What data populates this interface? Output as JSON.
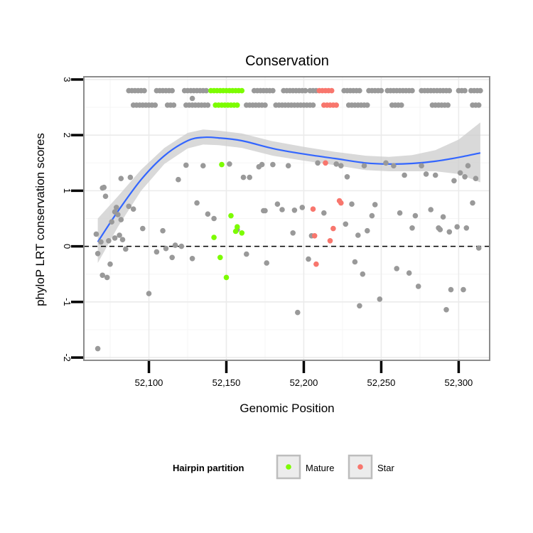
{
  "chart_data": {
    "type": "scatter",
    "title": "Conservation",
    "xlabel": "Genomic Position",
    "ylabel": "phyloP LRT conservation scores",
    "xlim": [
      52058,
      52320
    ],
    "ylim": [
      -2.05,
      3.05
    ],
    "x_ticks": [
      52100,
      52150,
      52200,
      52250,
      52300
    ],
    "x_tick_labels": [
      "52,100",
      "52,150",
      "52,200",
      "52,250",
      "52,300"
    ],
    "y_ticks": [
      -2,
      -1,
      0,
      1,
      2,
      3
    ],
    "y_tick_labels": [
      "-2",
      "-1",
      "0",
      "1",
      "2",
      "3"
    ],
    "grid": true,
    "reference_line": {
      "y": 0,
      "style": "dashed"
    },
    "legend": {
      "title": "Hairpin partition",
      "placement": "bottom",
      "entries": [
        {
          "label": "Mature",
          "color": "#7CFC00"
        },
        {
          "label": "Star",
          "color": "#F8766D"
        }
      ]
    },
    "colors": {
      "other": "#999999",
      "mature": "#7CFC00",
      "star": "#F8766D",
      "smooth": "#3366FF",
      "band": "#cccccc"
    },
    "smooth": {
      "x": [
        52067,
        52080,
        52095,
        52110,
        52125,
        52135,
        52145,
        52160,
        52180,
        52200,
        52220,
        52240,
        52255,
        52270,
        52285,
        52300,
        52314
      ],
      "y": [
        0.08,
        0.63,
        1.2,
        1.63,
        1.9,
        1.96,
        1.95,
        1.9,
        1.76,
        1.66,
        1.58,
        1.5,
        1.48,
        1.49,
        1.53,
        1.6,
        1.68
      ],
      "lower": [
        -0.3,
        0.35,
        1.0,
        1.48,
        1.76,
        1.83,
        1.82,
        1.77,
        1.63,
        1.54,
        1.46,
        1.37,
        1.35,
        1.35,
        1.35,
        1.3,
        1.15
      ],
      "upper": [
        0.5,
        0.9,
        1.38,
        1.77,
        2.04,
        2.1,
        2.08,
        2.03,
        1.89,
        1.79,
        1.7,
        1.63,
        1.61,
        1.64,
        1.73,
        1.92,
        2.23
      ]
    },
    "series": [
      {
        "key": "other",
        "points": [
          [
            52067,
            -1.84
          ],
          [
            52066,
            0.22
          ],
          [
            52067,
            -0.13
          ],
          [
            52069,
            0.08
          ],
          [
            52070,
            1.05
          ],
          [
            52071,
            1.06
          ],
          [
            52072,
            0.9
          ],
          [
            52070,
            -0.52
          ],
          [
            52073,
            -0.56
          ],
          [
            52074,
            0.1
          ],
          [
            52075,
            -0.32
          ],
          [
            52076,
            0.44
          ],
          [
            52078,
            0.15
          ],
          [
            52078,
            0.62
          ],
          [
            52079,
            0.7
          ],
          [
            52080,
            0.57
          ],
          [
            52081,
            0.2
          ],
          [
            52082,
            1.22
          ],
          [
            52082,
            0.48
          ],
          [
            52083,
            0.12
          ],
          [
            52085,
            -0.05
          ],
          [
            52087,
            0.72
          ],
          [
            52088,
            1.24
          ],
          [
            52090,
            0.67
          ],
          [
            52096,
            0.32
          ],
          [
            52100,
            -0.85
          ],
          [
            52105,
            -0.1
          ],
          [
            52109,
            0.28
          ],
          [
            52111,
            -0.04
          ],
          [
            52115,
            -0.2
          ],
          [
            52117,
            0.02
          ],
          [
            52119,
            1.2
          ],
          [
            52121,
            0.0
          ],
          [
            52124,
            1.46
          ],
          [
            52128,
            -0.22
          ],
          [
            52131,
            0.78
          ],
          [
            52135,
            1.45
          ],
          [
            52138,
            0.58
          ],
          [
            52142,
            0.5
          ],
          [
            52152,
            1.48
          ],
          [
            52157,
            0.3
          ],
          [
            52161,
            1.24
          ],
          [
            52163,
            -0.14
          ],
          [
            52165,
            1.24
          ],
          [
            52171,
            1.43
          ],
          [
            52173,
            1.47
          ],
          [
            52174,
            0.64
          ],
          [
            52175,
            0.64
          ],
          [
            52176,
            -0.3
          ],
          [
            52180,
            1.47
          ],
          [
            52183,
            0.76
          ],
          [
            52186,
            0.66
          ],
          [
            52190,
            1.45
          ],
          [
            52193,
            0.24
          ],
          [
            52194,
            0.65
          ],
          [
            52196,
            -1.19
          ],
          [
            52199,
            0.7
          ],
          [
            52203,
            -0.23
          ],
          [
            52205,
            0.19
          ],
          [
            52209,
            1.5
          ],
          [
            52213,
            0.6
          ],
          [
            52221,
            1.48
          ],
          [
            52224,
            1.45
          ],
          [
            52227,
            0.4
          ],
          [
            52228,
            1.25
          ],
          [
            52231,
            0.76
          ],
          [
            52233,
            -0.28
          ],
          [
            52235,
            0.2
          ],
          [
            52236,
            -1.07
          ],
          [
            52238,
            -0.5
          ],
          [
            52239,
            1.45
          ],
          [
            52241,
            0.28
          ],
          [
            52244,
            0.55
          ],
          [
            52246,
            0.75
          ],
          [
            52249,
            -0.95
          ],
          [
            52253,
            1.5
          ],
          [
            52258,
            1.45
          ],
          [
            52260,
            -0.4
          ],
          [
            52262,
            0.6
          ],
          [
            52265,
            1.28
          ],
          [
            52268,
            -0.48
          ],
          [
            52270,
            0.33
          ],
          [
            52272,
            0.55
          ],
          [
            52274,
            -0.72
          ],
          [
            52276,
            1.45
          ],
          [
            52279,
            1.3
          ],
          [
            52282,
            0.66
          ],
          [
            52285,
            1.28
          ],
          [
            52287,
            0.33
          ],
          [
            52288,
            0.3
          ],
          [
            52290,
            0.53
          ],
          [
            52292,
            -1.14
          ],
          [
            52294,
            0.26
          ],
          [
            52295,
            -0.78
          ],
          [
            52297,
            1.18
          ],
          [
            52299,
            0.35
          ],
          [
            52301,
            1.32
          ],
          [
            52303,
            -0.78
          ],
          [
            52304,
            1.25
          ],
          [
            52305,
            0.33
          ],
          [
            52306,
            1.45
          ],
          [
            52309,
            0.78
          ],
          [
            52311,
            1.22
          ],
          [
            52313,
            -0.03
          ]
        ]
      },
      {
        "key": "mature",
        "points": [
          [
            52142,
            0.16
          ],
          [
            52147,
            1.47
          ],
          [
            52150,
            -0.56
          ],
          [
            52153,
            0.55
          ],
          [
            52156,
            0.27
          ],
          [
            52157,
            0.35
          ],
          [
            52160,
            0.24
          ],
          [
            52146,
            -0.2
          ]
        ]
      },
      {
        "key": "star",
        "points": [
          [
            52206,
            0.67
          ],
          [
            52207,
            0.19
          ],
          [
            52208,
            -0.32
          ],
          [
            52214,
            1.5
          ],
          [
            52217,
            0.1
          ],
          [
            52219,
            0.32
          ],
          [
            52223,
            0.82
          ],
          [
            52224,
            0.78
          ]
        ]
      }
    ],
    "top_rows": [
      {
        "y": 2.8,
        "spans": [
          {
            "key": "other",
            "from": 52087,
            "to": 52098,
            "step": 2
          },
          {
            "key": "other",
            "from": 52105,
            "to": 52116,
            "step": 2
          },
          {
            "key": "other",
            "from": 52123,
            "to": 52138,
            "step": 2
          },
          {
            "key": "mature",
            "from": 52140,
            "to": 52160,
            "step": 2
          },
          {
            "key": "other",
            "from": 52168,
            "to": 52180,
            "step": 2
          },
          {
            "key": "other",
            "from": 52187,
            "to": 52202,
            "step": 2
          },
          {
            "key": "other",
            "from": 52204,
            "to": 52208,
            "step": 2
          },
          {
            "key": "star",
            "from": 52210,
            "to": 52218,
            "step": 2
          },
          {
            "key": "other",
            "from": 52226,
            "to": 52236,
            "step": 2
          },
          {
            "key": "other",
            "from": 52242,
            "to": 52250,
            "step": 2
          },
          {
            "key": "other",
            "from": 52254,
            "to": 52270,
            "step": 2
          },
          {
            "key": "other",
            "from": 52276,
            "to": 52294,
            "step": 2
          },
          {
            "key": "other",
            "from": 52300,
            "to": 52304,
            "step": 2
          },
          {
            "key": "other",
            "from": 52308,
            "to": 52314,
            "step": 2
          }
        ]
      },
      {
        "y": 2.54,
        "spans": [
          {
            "key": "other",
            "from": 52090,
            "to": 52105,
            "step": 2
          },
          {
            "key": "other",
            "from": 52112,
            "to": 52116,
            "step": 2
          },
          {
            "key": "other",
            "from": 52124,
            "to": 52138,
            "step": 2
          },
          {
            "key": "mature",
            "from": 52143,
            "to": 52157,
            "step": 2
          },
          {
            "key": "other",
            "from": 52163,
            "to": 52175,
            "step": 2
          },
          {
            "key": "other",
            "from": 52182,
            "to": 52206,
            "step": 2
          },
          {
            "key": "star",
            "from": 52213,
            "to": 52221,
            "step": 2
          },
          {
            "key": "other",
            "from": 52229,
            "to": 52242,
            "step": 2
          },
          {
            "key": "other",
            "from": 52257,
            "to": 52264,
            "step": 2
          },
          {
            "key": "other",
            "from": 52283,
            "to": 52294,
            "step": 2
          },
          {
            "key": "other",
            "from": 52309,
            "to": 52314,
            "step": 2
          }
        ]
      }
    ],
    "top_row_extra": [
      {
        "key": "other",
        "x": 52128,
        "y": 2.66
      }
    ]
  }
}
